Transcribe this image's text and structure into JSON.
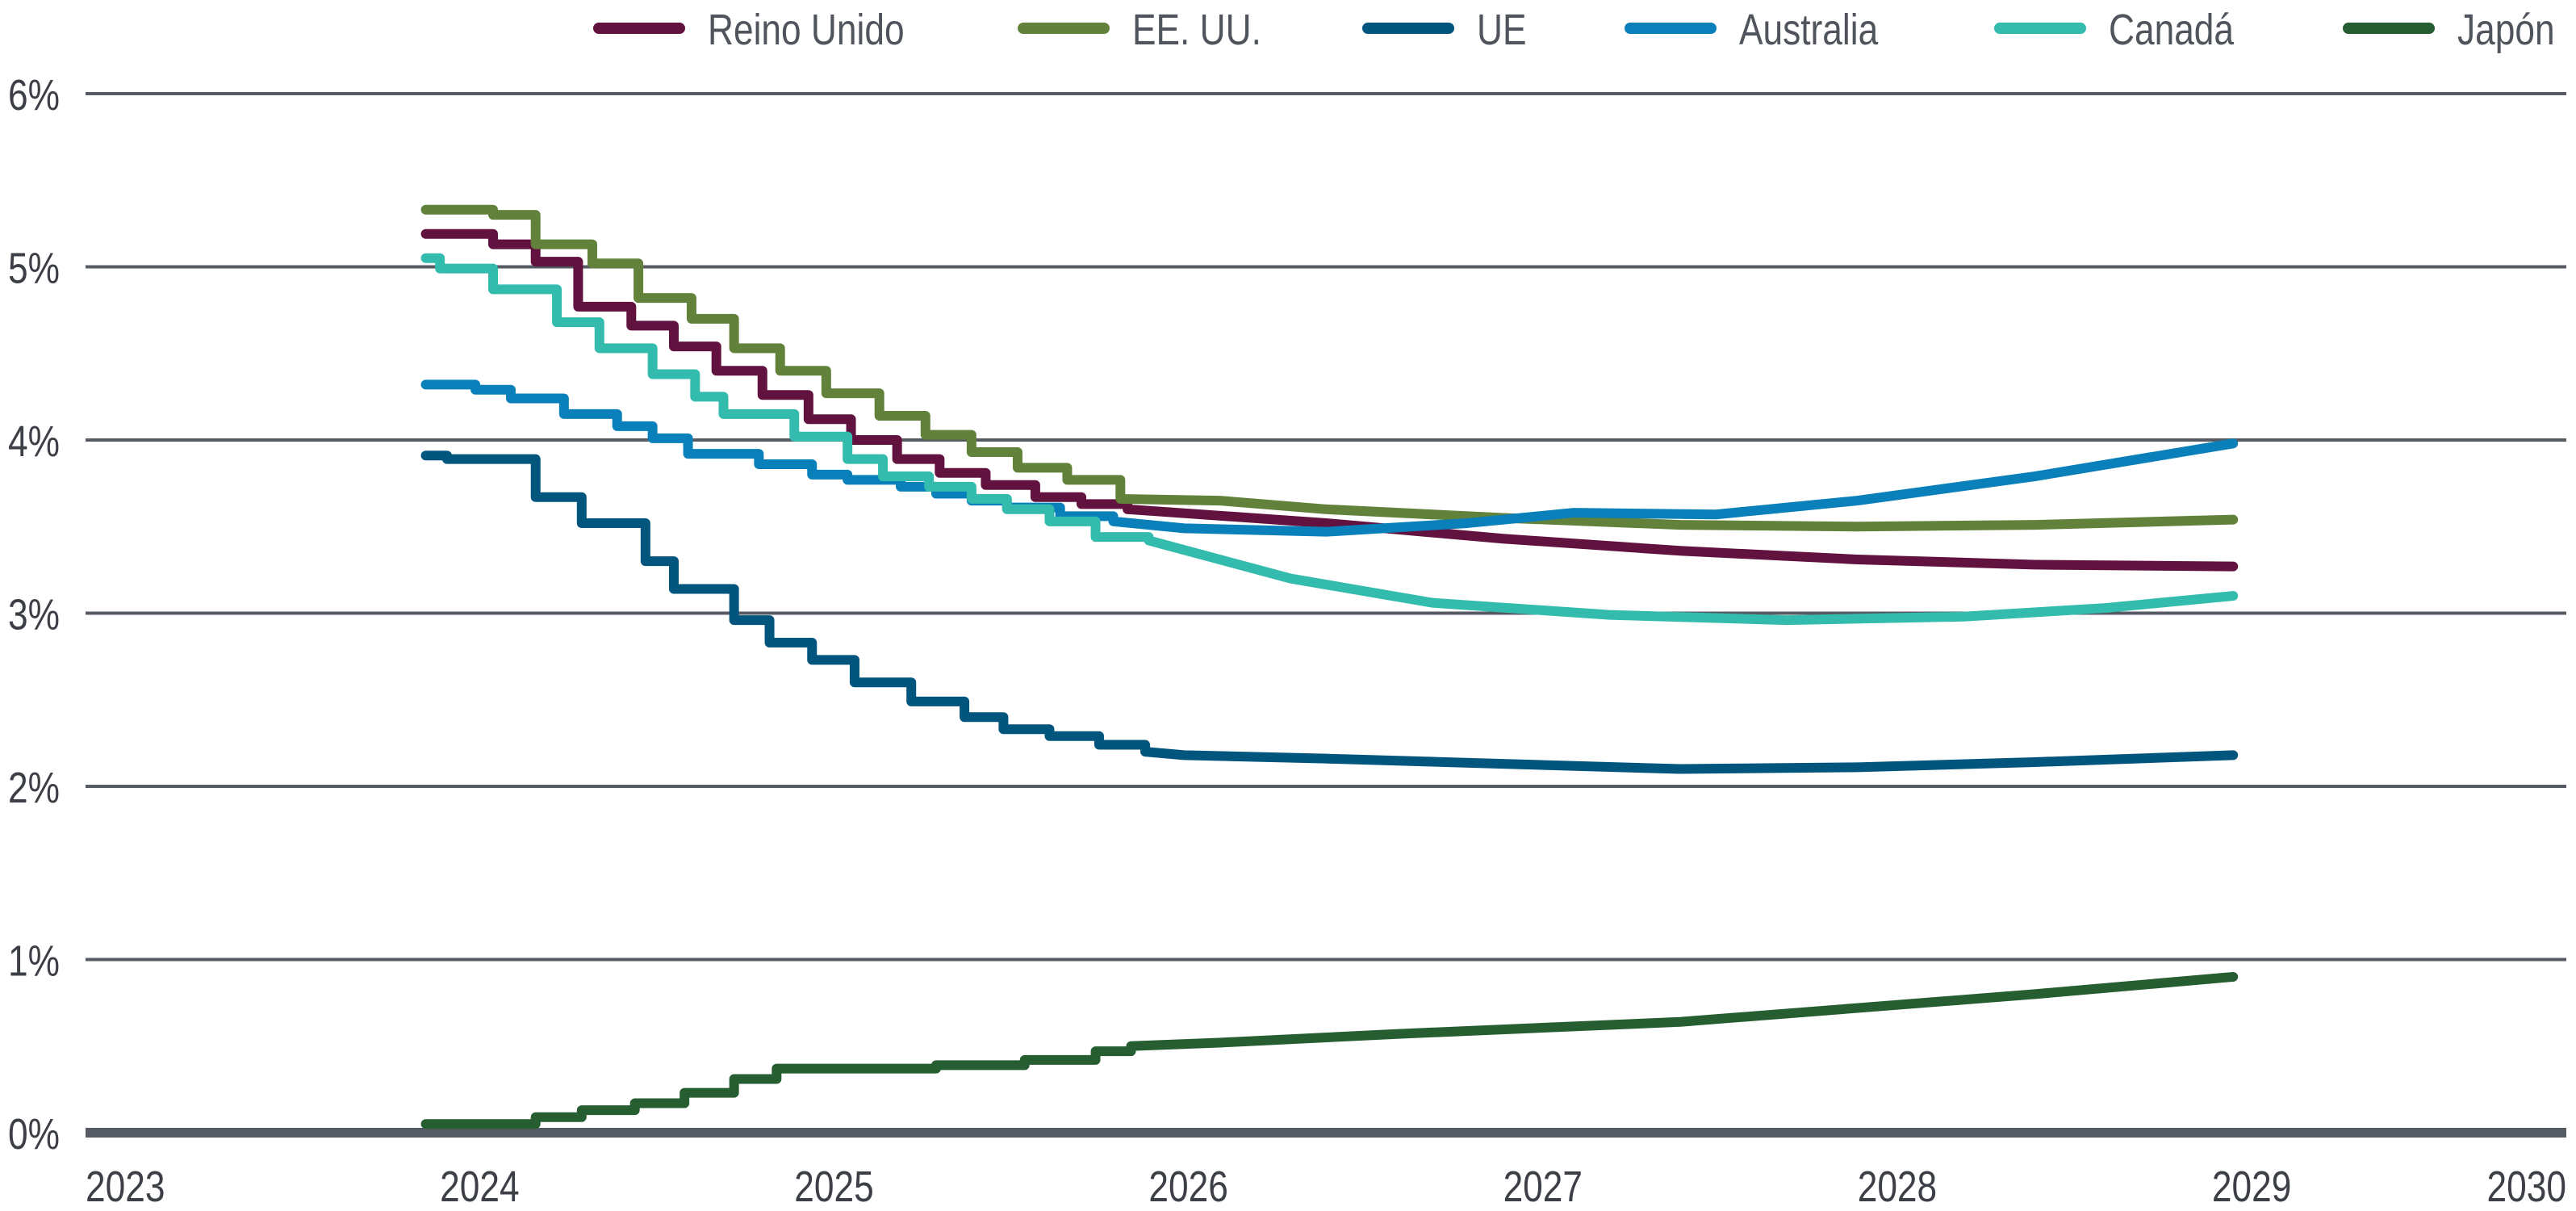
{
  "chart_data": {
    "type": "line",
    "title": "",
    "xlabel": "",
    "ylabel": "",
    "xlim": [
      2023,
      2030
    ],
    "ylim": [
      0,
      6
    ],
    "x_ticks": [
      "2023",
      "2024",
      "2025",
      "2026",
      "2027",
      "2028",
      "2029",
      "2030"
    ],
    "y_ticks": [
      "0%",
      "1%",
      "2%",
      "3%",
      "4%",
      "5%",
      "6%"
    ],
    "grid": "horizontal",
    "legend_placement": "top",
    "series": [
      {
        "name": "Reino Unido",
        "color": "#62123f",
        "points": [
          [
            2023.96,
            5.19
          ],
          [
            2024.15,
            5.13
          ],
          [
            2024.27,
            5.03
          ],
          [
            2024.39,
            4.77
          ],
          [
            2024.54,
            4.66
          ],
          [
            2024.66,
            4.54
          ],
          [
            2024.78,
            4.4
          ],
          [
            2024.91,
            4.26
          ],
          [
            2025.04,
            4.12
          ],
          [
            2025.16,
            4.0
          ],
          [
            2025.29,
            3.89
          ],
          [
            2025.41,
            3.81
          ],
          [
            2025.54,
            3.74
          ],
          [
            2025.68,
            3.67
          ],
          [
            2025.81,
            3.63
          ],
          [
            2025.94,
            3.6
          ],
          [
            2026.5,
            3.52
          ],
          [
            2027.0,
            3.43
          ],
          [
            2027.5,
            3.36
          ],
          [
            2028.0,
            3.31
          ],
          [
            2028.5,
            3.28
          ],
          [
            2029.06,
            3.27
          ]
        ]
      },
      {
        "name": "EE. UU.",
        "color": "#62823b",
        "points": [
          [
            2023.96,
            5.33
          ],
          [
            2024.15,
            5.3
          ],
          [
            2024.27,
            5.13
          ],
          [
            2024.43,
            5.02
          ],
          [
            2024.56,
            4.82
          ],
          [
            2024.71,
            4.7
          ],
          [
            2024.83,
            4.53
          ],
          [
            2024.96,
            4.4
          ],
          [
            2025.09,
            4.27
          ],
          [
            2025.24,
            4.14
          ],
          [
            2025.37,
            4.03
          ],
          [
            2025.5,
            3.93
          ],
          [
            2025.63,
            3.84
          ],
          [
            2025.77,
            3.77
          ],
          [
            2025.92,
            3.66
          ],
          [
            2026.2,
            3.65
          ],
          [
            2026.5,
            3.6
          ],
          [
            2027.0,
            3.55
          ],
          [
            2027.5,
            3.51
          ],
          [
            2028.0,
            3.5
          ],
          [
            2028.5,
            3.51
          ],
          [
            2029.06,
            3.54
          ]
        ]
      },
      {
        "name": "UE",
        "color": "#02557d",
        "points": [
          [
            2023.96,
            3.91
          ],
          [
            2024.02,
            3.89
          ],
          [
            2024.27,
            3.67
          ],
          [
            2024.4,
            3.52
          ],
          [
            2024.58,
            3.3
          ],
          [
            2024.66,
            3.14
          ],
          [
            2024.83,
            2.96
          ],
          [
            2024.93,
            2.83
          ],
          [
            2025.05,
            2.73
          ],
          [
            2025.17,
            2.6
          ],
          [
            2025.33,
            2.49
          ],
          [
            2025.48,
            2.4
          ],
          [
            2025.59,
            2.33
          ],
          [
            2025.72,
            2.29
          ],
          [
            2025.86,
            2.24
          ],
          [
            2025.99,
            2.2
          ],
          [
            2026.1,
            2.18
          ],
          [
            2026.5,
            2.16
          ],
          [
            2027.0,
            2.13
          ],
          [
            2027.5,
            2.1
          ],
          [
            2028.0,
            2.11
          ],
          [
            2028.5,
            2.14
          ],
          [
            2029.06,
            2.18
          ]
        ]
      },
      {
        "name": "Australia",
        "color": "#0a80bb",
        "points": [
          [
            2023.96,
            4.32
          ],
          [
            2024.1,
            4.29
          ],
          [
            2024.2,
            4.24
          ],
          [
            2024.35,
            4.15
          ],
          [
            2024.5,
            4.08
          ],
          [
            2024.6,
            4.01
          ],
          [
            2024.7,
            3.92
          ],
          [
            2024.9,
            3.86
          ],
          [
            2025.05,
            3.8
          ],
          [
            2025.15,
            3.77
          ],
          [
            2025.3,
            3.73
          ],
          [
            2025.4,
            3.69
          ],
          [
            2025.5,
            3.65
          ],
          [
            2025.6,
            3.61
          ],
          [
            2025.75,
            3.56
          ],
          [
            2025.9,
            3.53
          ],
          [
            2026.1,
            3.49
          ],
          [
            2026.5,
            3.47
          ],
          [
            2026.9,
            3.52
          ],
          [
            2027.2,
            3.58
          ],
          [
            2027.6,
            3.57
          ],
          [
            2028.0,
            3.65
          ],
          [
            2028.5,
            3.79
          ],
          [
            2029.06,
            3.98
          ]
        ]
      },
      {
        "name": "Canadá",
        "color": "#33bcad",
        "points": [
          [
            2023.96,
            5.05
          ],
          [
            2024.0,
            4.99
          ],
          [
            2024.15,
            4.87
          ],
          [
            2024.33,
            4.68
          ],
          [
            2024.45,
            4.53
          ],
          [
            2024.6,
            4.38
          ],
          [
            2024.72,
            4.25
          ],
          [
            2024.8,
            4.15
          ],
          [
            2025.0,
            4.02
          ],
          [
            2025.15,
            3.89
          ],
          [
            2025.25,
            3.79
          ],
          [
            2025.38,
            3.73
          ],
          [
            2025.5,
            3.66
          ],
          [
            2025.6,
            3.6
          ],
          [
            2025.72,
            3.53
          ],
          [
            2025.85,
            3.44
          ],
          [
            2026.0,
            3.42
          ],
          [
            2026.4,
            3.2
          ],
          [
            2026.8,
            3.06
          ],
          [
            2027.3,
            2.99
          ],
          [
            2027.8,
            2.96
          ],
          [
            2028.3,
            2.98
          ],
          [
            2028.7,
            3.03
          ],
          [
            2029.06,
            3.1
          ]
        ]
      },
      {
        "name": "Japón",
        "color": "#265e31",
        "points": [
          [
            2023.96,
            0.05
          ],
          [
            2024.27,
            0.09
          ],
          [
            2024.4,
            0.13
          ],
          [
            2024.55,
            0.17
          ],
          [
            2024.69,
            0.23
          ],
          [
            2024.83,
            0.31
          ],
          [
            2024.95,
            0.37
          ],
          [
            2025.4,
            0.39
          ],
          [
            2025.65,
            0.42
          ],
          [
            2025.85,
            0.47
          ],
          [
            2025.95,
            0.5
          ],
          [
            2026.2,
            0.52
          ],
          [
            2026.7,
            0.57
          ],
          [
            2027.5,
            0.64
          ],
          [
            2028.0,
            0.72
          ],
          [
            2028.5,
            0.8
          ],
          [
            2029.06,
            0.9
          ]
        ]
      }
    ]
  }
}
